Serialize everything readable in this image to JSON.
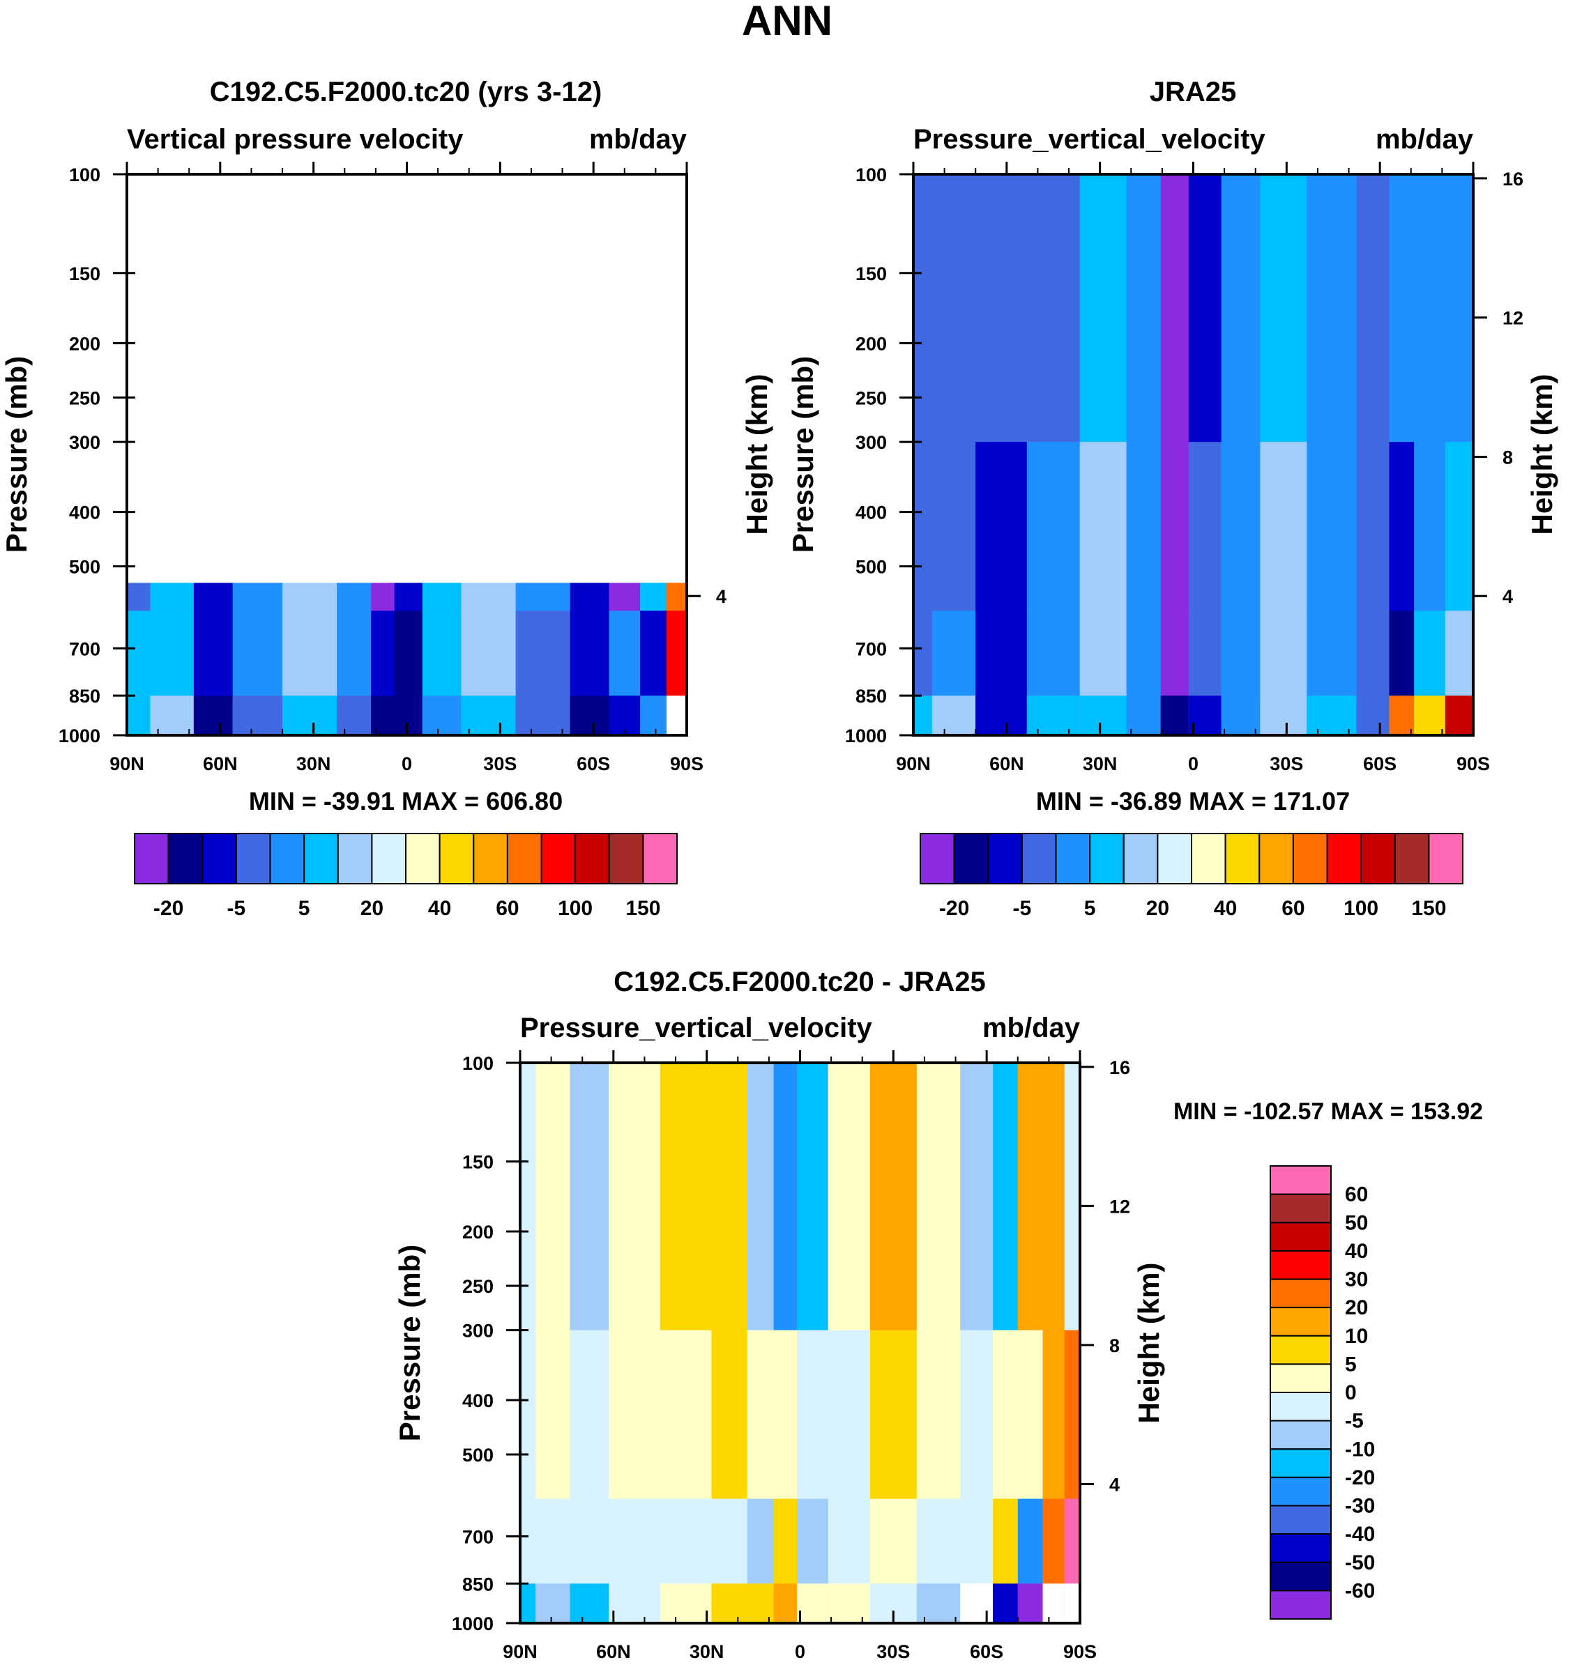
{
  "page_title": "ANN",
  "chart_data": [
    {
      "id": "model",
      "type": "heatmap",
      "title": "C192.C5.F2000.tc20 (yrs 3-12)",
      "left_label": "Vertical pressure velocity",
      "right_label": "mb/day",
      "ylabel": "Pressure (mb)",
      "y2label": "Height (km)",
      "x_ticks": [
        "90N",
        "60N",
        "30N",
        "0",
        "30S",
        "60S",
        "90S"
      ],
      "y_ticks": [
        100,
        150,
        200,
        250,
        300,
        400,
        500,
        700,
        850,
        1000
      ],
      "y2_ticks": [
        4
      ],
      "stats": "MIN = -39.91   MAX = 606.80",
      "colorbar_labels": [
        "-20",
        "-5",
        "5",
        "20",
        "40",
        "60",
        "100",
        "150"
      ],
      "bands": [
        {
          "lat": 90,
          "colors": [
            "#4169e1",
            "#4169e1",
            "#00bfff",
            "#00bfff"
          ]
        },
        {
          "lat": 75,
          "colors": [
            "#1e90ff",
            "#00bfff",
            "#00bfff",
            "#a2cdfa"
          ]
        },
        {
          "lat": 62,
          "colors": [
            "#0000cd",
            "#0000cd",
            "#0000cd",
            "#00008b"
          ]
        },
        {
          "lat": 50,
          "colors": [
            "#1e90ff",
            "#1e90ff",
            "#1e90ff",
            "#4169e1"
          ]
        },
        {
          "lat": 30,
          "colors": [
            "#00bfff",
            "#a2cdfa",
            "#a2cdfa",
            "#00bfff"
          ]
        },
        {
          "lat": 15,
          "colors": [
            "#4169e1",
            "#1e90ff",
            "#1e90ff",
            "#4169e1"
          ]
        },
        {
          "lat": 8,
          "colors": [
            "#8a2be2",
            "#8a2be2",
            "#0000cd",
            "#00008b"
          ]
        },
        {
          "lat": 0,
          "colors": [
            "#0000cd",
            "#0000cd",
            "#00008b",
            "#00008b"
          ]
        },
        {
          "lat": -10,
          "colors": [
            "#1e90ff",
            "#00bfff",
            "#00bfff",
            "#1e90ff"
          ]
        },
        {
          "lat": -25,
          "colors": [
            "#a2cdfa",
            "#a2cdfa",
            "#a2cdfa",
            "#00bfff"
          ]
        },
        {
          "lat": -45,
          "colors": [
            "#00bfff",
            "#1e90ff",
            "#4169e1",
            "#4169e1"
          ]
        },
        {
          "lat": -60,
          "colors": [
            "#00008b",
            "#0000cd",
            "#0000cd",
            "#00008b"
          ]
        },
        {
          "lat": -70,
          "colors": [
            "#00bfff",
            "#8a2be2",
            "#1e90ff",
            "#0000cd"
          ]
        },
        {
          "lat": -80,
          "colors": [
            "#d8f3ff",
            "#00bfff",
            "#0000cd",
            "#1e90ff"
          ]
        },
        {
          "lat": -87,
          "colors": [
            "#ffffff",
            "#ff7000",
            "#ff0000",
            "#ffffff"
          ]
        }
      ]
    },
    {
      "id": "obs",
      "type": "heatmap",
      "title": "JRA25",
      "left_label": "Pressure_vertical_velocity",
      "right_label": "mb/day",
      "ylabel": "Pressure (mb)",
      "y2label": "Height (km)",
      "x_ticks": [
        "90N",
        "60N",
        "30N",
        "0",
        "30S",
        "60S",
        "90S"
      ],
      "y_ticks": [
        100,
        150,
        200,
        250,
        300,
        400,
        500,
        700,
        850,
        1000
      ],
      "y2_ticks": [
        16,
        12,
        8,
        4
      ],
      "stats": "MIN = -36.89   MAX = 171.07",
      "colorbar_labels": [
        "-20",
        "-5",
        "5",
        "20",
        "40",
        "60",
        "100",
        "150"
      ],
      "bands": [
        {
          "lat": 90,
          "colors": [
            "#4169e1",
            "#4169e1",
            "#4169e1",
            "#00bfff"
          ]
        },
        {
          "lat": 78,
          "colors": [
            "#4169e1",
            "#4169e1",
            "#1e90ff",
            "#a2cdfa"
          ]
        },
        {
          "lat": 62,
          "colors": [
            "#4169e1",
            "#0000cd",
            "#0000cd",
            "#0000cd"
          ]
        },
        {
          "lat": 45,
          "colors": [
            "#4169e1",
            "#1e90ff",
            "#1e90ff",
            "#00bfff"
          ]
        },
        {
          "lat": 28,
          "colors": [
            "#00bfff",
            "#a2cdfa",
            "#a2cdfa",
            "#00bfff"
          ]
        },
        {
          "lat": 15,
          "colors": [
            "#1e90ff",
            "#1e90ff",
            "#1e90ff",
            "#1e90ff"
          ]
        },
        {
          "lat": 6,
          "colors": [
            "#8a2be2",
            "#8a2be2",
            "#8a2be2",
            "#00008b"
          ]
        },
        {
          "lat": -3,
          "colors": [
            "#0000cd",
            "#4169e1",
            "#4169e1",
            "#0000cd"
          ]
        },
        {
          "lat": -15,
          "colors": [
            "#1e90ff",
            "#1e90ff",
            "#1e90ff",
            "#1e90ff"
          ]
        },
        {
          "lat": -28,
          "colors": [
            "#00bfff",
            "#a2cdfa",
            "#a2cdfa",
            "#a2cdfa"
          ]
        },
        {
          "lat": -45,
          "colors": [
            "#1e90ff",
            "#1e90ff",
            "#1e90ff",
            "#00bfff"
          ]
        },
        {
          "lat": -60,
          "colors": [
            "#4169e1",
            "#4169e1",
            "#4169e1",
            "#4169e1"
          ]
        },
        {
          "lat": -66,
          "colors": [
            "#1e90ff",
            "#0000cd",
            "#00008b",
            "#ff7000"
          ]
        },
        {
          "lat": -76,
          "colors": [
            "#1e90ff",
            "#1e90ff",
            "#00bfff",
            "#ffd700"
          ]
        },
        {
          "lat": -86,
          "colors": [
            "#1e90ff",
            "#00bfff",
            "#a2cdfa",
            "#c80000"
          ]
        }
      ]
    },
    {
      "id": "diff",
      "type": "heatmap",
      "title": "C192.C5.F2000.tc20 - JRA25",
      "left_label": "Pressure_vertical_velocity",
      "right_label": "mb/day",
      "ylabel": "Pressure (mb)",
      "y2label": "Height (km)",
      "x_ticks": [
        "90N",
        "60N",
        "30N",
        "0",
        "30S",
        "60S",
        "90S"
      ],
      "y_ticks": [
        100,
        150,
        200,
        250,
        300,
        400,
        500,
        700,
        850,
        1000
      ],
      "y2_ticks": [
        16,
        12,
        8,
        4
      ],
      "stats": "MIN = -102.57   MAX = 153.92",
      "colorbar_labels": [
        "60",
        "50",
        "40",
        "30",
        "20",
        "10",
        "5",
        "0",
        "-5",
        "-10",
        "-20",
        "-30",
        "-40",
        "-50",
        "-60"
      ],
      "bands": [
        {
          "lat": 90,
          "colors": [
            "#d8f3ff",
            "#d8f3ff",
            "#d8f3ff",
            "#00bfff"
          ]
        },
        {
          "lat": 80,
          "colors": [
            "#ffffc8",
            "#ffffc8",
            "#d8f3ff",
            "#a2cdfa"
          ]
        },
        {
          "lat": 68,
          "colors": [
            "#a2cdfa",
            "#d8f3ff",
            "#d8f3ff",
            "#00bfff"
          ]
        },
        {
          "lat": 55,
          "colors": [
            "#ffffc8",
            "#ffffc8",
            "#d8f3ff",
            "#d8f3ff"
          ]
        },
        {
          "lat": 35,
          "colors": [
            "#ffd700",
            "#ffffc8",
            "#d8f3ff",
            "#ffffc8"
          ]
        },
        {
          "lat": 22,
          "colors": [
            "#ffd700",
            "#ffd700",
            "#d8f3ff",
            "#ffd700"
          ]
        },
        {
          "lat": 12,
          "colors": [
            "#a2cdfa",
            "#ffffc8",
            "#a2cdfa",
            "#ffd700"
          ]
        },
        {
          "lat": 5,
          "colors": [
            "#1e90ff",
            "#ffffc8",
            "#ffd700",
            "#ffa500"
          ]
        },
        {
          "lat": -3,
          "colors": [
            "#00bfff",
            "#d8f3ff",
            "#a2cdfa",
            "#ffffc8"
          ]
        },
        {
          "lat": -15,
          "colors": [
            "#ffffc8",
            "#d8f3ff",
            "#d8f3ff",
            "#ffffc8"
          ]
        },
        {
          "lat": -30,
          "colors": [
            "#ffa500",
            "#ffd700",
            "#ffffc8",
            "#d8f3ff"
          ]
        },
        {
          "lat": -45,
          "colors": [
            "#ffffc8",
            "#ffffc8",
            "#d8f3ff",
            "#a2cdfa"
          ]
        },
        {
          "lat": -58,
          "colors": [
            "#a2cdfa",
            "#d8f3ff",
            "#d8f3ff",
            "#ffffff"
          ]
        },
        {
          "lat": -66,
          "colors": [
            "#00bfff",
            "#ffffc8",
            "#ffd700",
            "#0000cd"
          ]
        },
        {
          "lat": -74,
          "colors": [
            "#ffa500",
            "#ffffc8",
            "#1e90ff",
            "#8a2be2"
          ]
        },
        {
          "lat": -82,
          "colors": [
            "#ffa500",
            "#ffa500",
            "#ff7000",
            "#ffffff"
          ]
        },
        {
          "lat": -88,
          "colors": [
            "#d8f3ff",
            "#ff7000",
            "#ff69b4",
            "#ffffff"
          ]
        }
      ]
    }
  ],
  "colors": {
    "abs_scale": [
      "#8a2be2",
      "#00008b",
      "#0000cd",
      "#4169e1",
      "#1e90ff",
      "#00bfff",
      "#a2cdfa",
      "#d8f3ff",
      "#ffffc8",
      "#ffd700",
      "#ffa500",
      "#ff7000",
      "#ff0000",
      "#c80000",
      "#a52a2a",
      "#ff69b4"
    ],
    "diff_scale": [
      "#8a2be2",
      "#00008b",
      "#0000cd",
      "#4169e1",
      "#1e90ff",
      "#00bfff",
      "#a2cdfa",
      "#d8f3ff",
      "#ffffc8",
      "#ffd700",
      "#ffa500",
      "#ff7000",
      "#ff0000",
      "#c80000",
      "#a52a2a",
      "#ff69b4"
    ]
  }
}
